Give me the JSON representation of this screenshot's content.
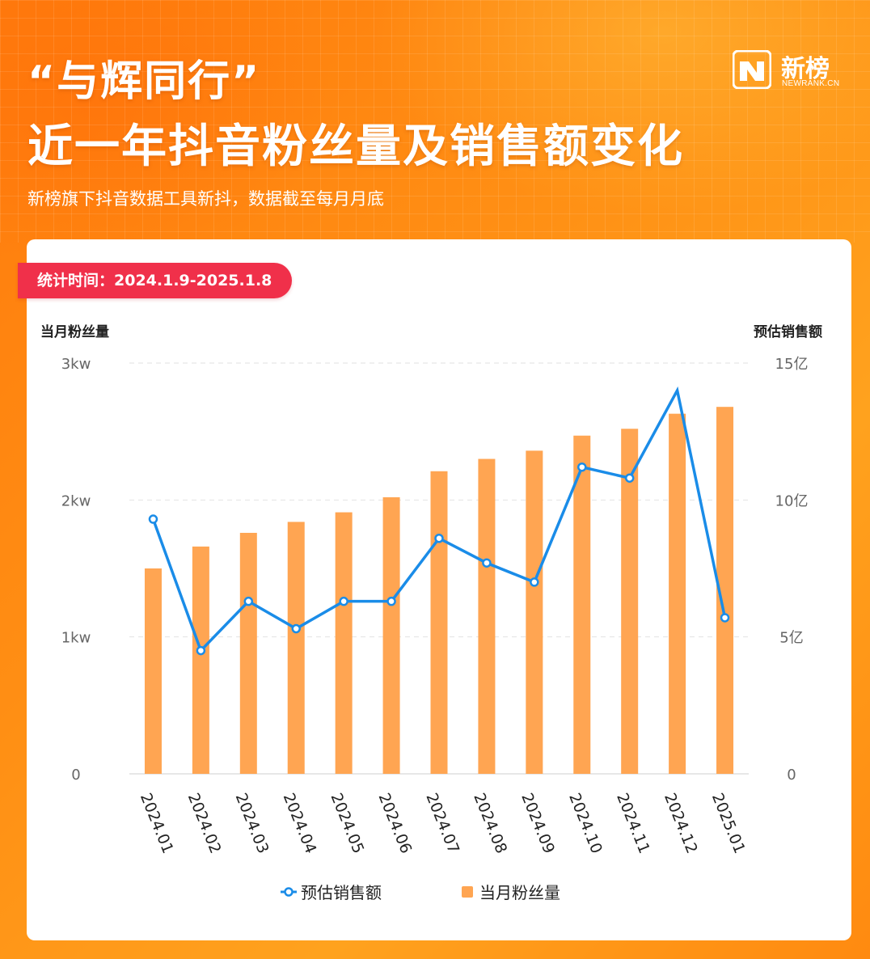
{
  "header": {
    "title_line1": "“与辉同行”",
    "title_line2": "近一年抖音粉丝量及销售额变化",
    "subtitle": "新榜旗下抖音数据工具新抖，数据截至每月月底"
  },
  "logo": {
    "name_cn": "新榜",
    "domain": "NEWRANK.CN"
  },
  "badge": {
    "label": "统计时间：2024.1.9-2025.1.8"
  },
  "colors": {
    "bar": "#ffa552",
    "line": "#1a8ce8",
    "badge": "#f0304a",
    "background": "#ff8a10"
  },
  "chart_data": {
    "type": "bar+line",
    "categories": [
      "2024.01",
      "2024.02",
      "2024.03",
      "2024.04",
      "2024.05",
      "2024.06",
      "2024.07",
      "2024.08",
      "2024.09",
      "2024.10",
      "2024.11",
      "2024.12",
      "2025.01"
    ],
    "left_axis": {
      "title": "当月粉丝量",
      "ticks": [
        "0",
        "1kw",
        "2kw",
        "3kw"
      ],
      "ylim": [
        0,
        3000
      ]
    },
    "right_axis": {
      "title": "预估销售额",
      "ticks": [
        "0",
        "5亿",
        "10亿",
        "15亿"
      ],
      "ylim": [
        0,
        15
      ]
    },
    "series": [
      {
        "name": "当月粉丝量",
        "type": "bar",
        "axis": "left",
        "unit": "万",
        "values": [
          1500,
          1660,
          1760,
          1840,
          1910,
          2020,
          2210,
          2300,
          2360,
          2470,
          2520,
          2630,
          2680
        ]
      },
      {
        "name": "预估销售额",
        "type": "line",
        "axis": "right",
        "unit": "亿",
        "values": [
          9.3,
          4.5,
          6.3,
          5.3,
          6.3,
          6.3,
          8.6,
          7.7,
          7.0,
          11.2,
          10.8,
          14.0,
          5.7
        ]
      }
    ],
    "grid": true,
    "legend_position": "bottom-center"
  }
}
